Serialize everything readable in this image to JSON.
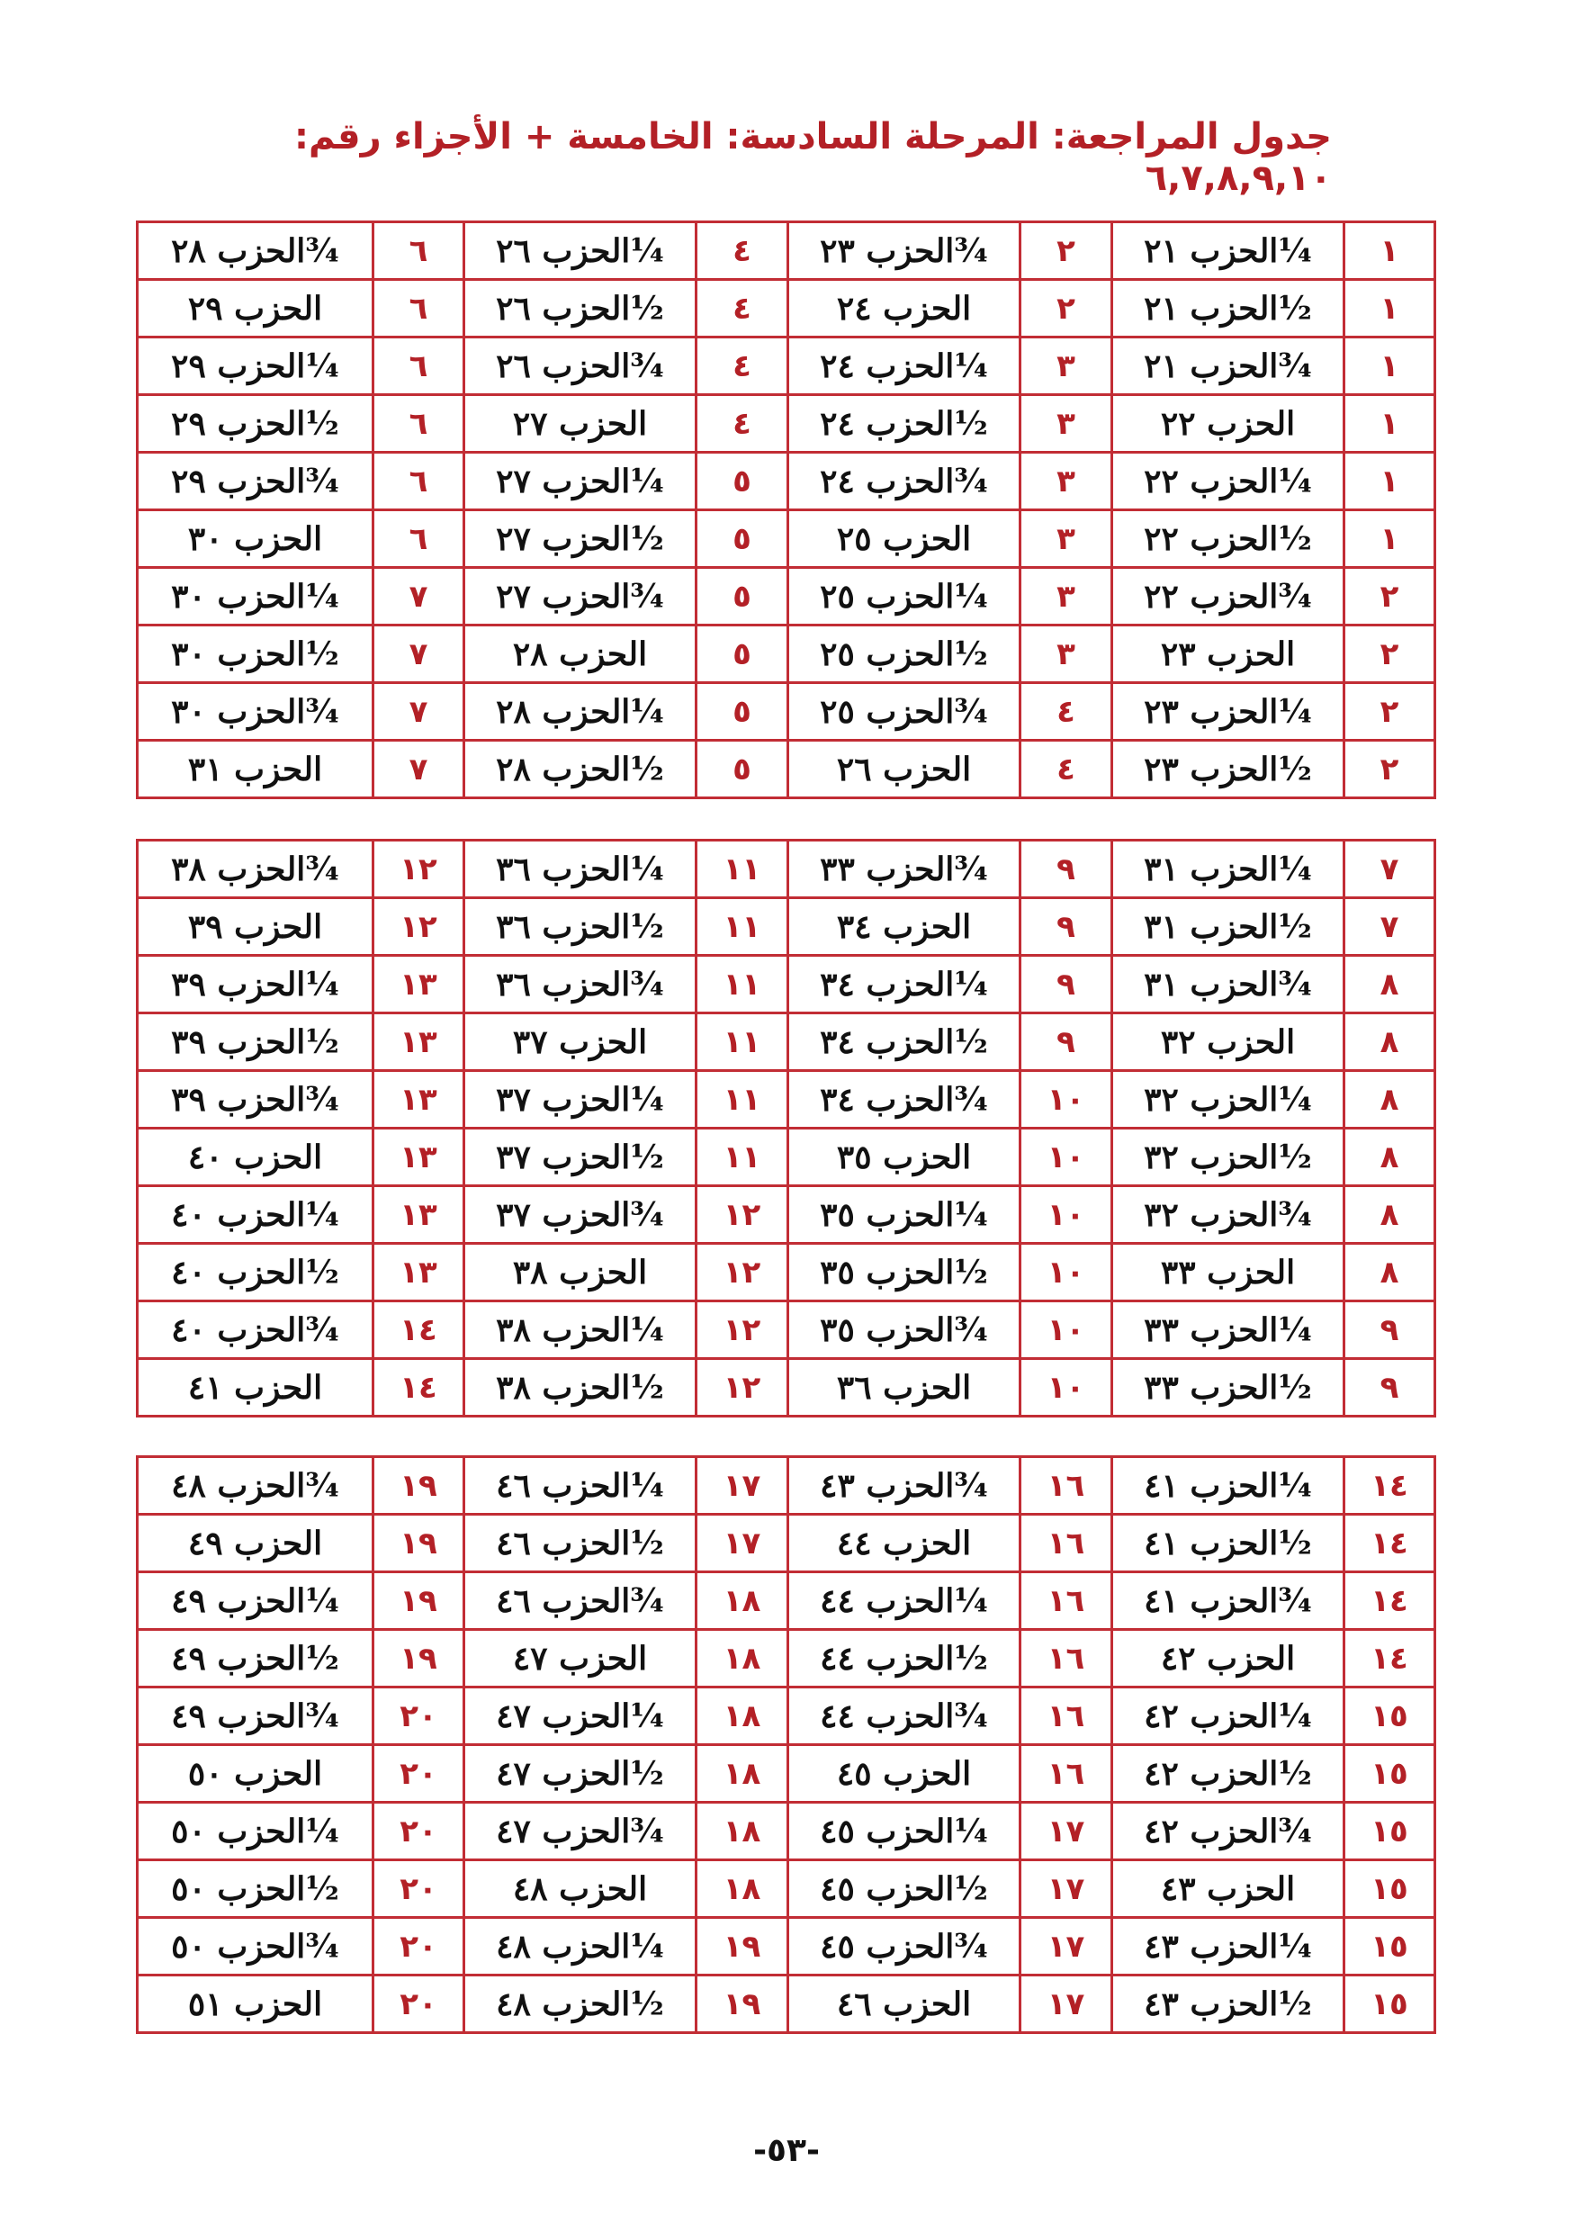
{
  "title": "جدول المراجعة: المرحلة السادسة: الخامسة + الأجزاء رقم: ٦,٧,٨,٩,١٠",
  "tables": [
    {
      "rows": [
        [
          "١",
          "¼الحزب ٢١",
          "٢",
          "¾الحزب ٢٣",
          "٤",
          "¼الحزب ٢٦",
          "٦",
          "¾الحزب ٢٨"
        ],
        [
          "١",
          "½الحزب ٢١",
          "٢",
          "الحزب ٢٤",
          "٤",
          "½الحزب ٢٦",
          "٦",
          "الحزب ٢٩"
        ],
        [
          "١",
          "¾الحزب ٢١",
          "٣",
          "¼الحزب ٢٤",
          "٤",
          "¾الحزب ٢٦",
          "٦",
          "¼الحزب ٢٩"
        ],
        [
          "١",
          "الحزب ٢٢",
          "٣",
          "½الحزب ٢٤",
          "٤",
          "الحزب ٢٧",
          "٦",
          "½الحزب ٢٩"
        ],
        [
          "١",
          "¼الحزب ٢٢",
          "٣",
          "¾الحزب ٢٤",
          "٥",
          "¼الحزب ٢٧",
          "٦",
          "¾الحزب ٢٩"
        ],
        [
          "١",
          "½الحزب ٢٢",
          "٣",
          "الحزب ٢٥",
          "٥",
          "½الحزب ٢٧",
          "٦",
          "الحزب ٣٠"
        ],
        [
          "٢",
          "¾الحزب ٢٢",
          "٣",
          "¼الحزب ٢٥",
          "٥",
          "¾الحزب ٢٧",
          "٧",
          "¼الحزب ٣٠"
        ],
        [
          "٢",
          "الحزب ٢٣",
          "٣",
          "½الحزب ٢٥",
          "٥",
          "الحزب ٢٨",
          "٧",
          "½الحزب ٣٠"
        ],
        [
          "٢",
          "¼الحزب ٢٣",
          "٤",
          "¾الحزب ٢٥",
          "٥",
          "¼الحزب ٢٨",
          "٧",
          "¾الحزب ٣٠"
        ],
        [
          "٢",
          "½الحزب ٢٣",
          "٤",
          "الحزب ٢٦",
          "٥",
          "½الحزب ٢٨",
          "٧",
          "الحزب ٣١"
        ]
      ]
    },
    {
      "rows": [
        [
          "٧",
          "¼الحزب ٣١",
          "٩",
          "¾الحزب ٣٣",
          "١١",
          "¼الحزب ٣٦",
          "١٢",
          "¾الحزب ٣٨"
        ],
        [
          "٧",
          "½الحزب ٣١",
          "٩",
          "الحزب ٣٤",
          "١١",
          "½الحزب ٣٦",
          "١٢",
          "الحزب ٣٩"
        ],
        [
          "٨",
          "¾الحزب ٣١",
          "٩",
          "¼الحزب ٣٤",
          "١١",
          "¾الحزب ٣٦",
          "١٣",
          "¼الحزب ٣٩"
        ],
        [
          "٨",
          "الحزب ٣٢",
          "٩",
          "½الحزب ٣٤",
          "١١",
          "الحزب ٣٧",
          "١٣",
          "½الحزب ٣٩"
        ],
        [
          "٨",
          "¼الحزب ٣٢",
          "١٠",
          "¾الحزب ٣٤",
          "١١",
          "¼الحزب ٣٧",
          "١٣",
          "¾الحزب ٣٩"
        ],
        [
          "٨",
          "½الحزب ٣٢",
          "١٠",
          "الحزب ٣٥",
          "١١",
          "½الحزب ٣٧",
          "١٣",
          "الحزب ٤٠"
        ],
        [
          "٨",
          "¾الحزب ٣٢",
          "١٠",
          "¼الحزب ٣٥",
          "١٢",
          "¾الحزب ٣٧",
          "١٣",
          "¼الحزب ٤٠"
        ],
        [
          "٨",
          "الحزب ٣٣",
          "١٠",
          "½الحزب ٣٥",
          "١٢",
          "الحزب ٣٨",
          "١٣",
          "½الحزب ٤٠"
        ],
        [
          "٩",
          "¼الحزب ٣٣",
          "١٠",
          "¾الحزب ٣٥",
          "١٢",
          "¼الحزب ٣٨",
          "١٤",
          "¾الحزب ٤٠"
        ],
        [
          "٩",
          "½الحزب ٣٣",
          "١٠",
          "الحزب ٣٦",
          "١٢",
          "½الحزب ٣٨",
          "١٤",
          "الحزب ٤١"
        ]
      ]
    },
    {
      "rows": [
        [
          "١٤",
          "¼الحزب ٤١",
          "١٦",
          "¾الحزب ٤٣",
          "١٧",
          "¼الحزب ٤٦",
          "١٩",
          "¾الحزب ٤٨"
        ],
        [
          "١٤",
          "½الحزب ٤١",
          "١٦",
          "الحزب ٤٤",
          "١٧",
          "½الحزب ٤٦",
          "١٩",
          "الحزب ٤٩"
        ],
        [
          "١٤",
          "¾الحزب ٤١",
          "١٦",
          "¼الحزب ٤٤",
          "١٨",
          "¾الحزب ٤٦",
          "١٩",
          "¼الحزب ٤٩"
        ],
        [
          "١٤",
          "الحزب ٤٢",
          "١٦",
          "½الحزب ٤٤",
          "١٨",
          "الحزب ٤٧",
          "١٩",
          "½الحزب ٤٩"
        ],
        [
          "١٥",
          "¼الحزب ٤٢",
          "١٦",
          "¾الحزب ٤٤",
          "١٨",
          "¼الحزب ٤٧",
          "٢٠",
          "¾الحزب ٤٩"
        ],
        [
          "١٥",
          "½الحزب ٤٢",
          "١٦",
          "الحزب ٤٥",
          "١٨",
          "½الحزب ٤٧",
          "٢٠",
          "الحزب ٥٠"
        ],
        [
          "١٥",
          "¾الحزب ٤٢",
          "١٧",
          "¼الحزب ٤٥",
          "١٨",
          "¾الحزب ٤٧",
          "٢٠",
          "¼الحزب ٥٠"
        ],
        [
          "١٥",
          "الحزب ٤٣",
          "١٧",
          "½الحزب ٤٥",
          "١٨",
          "الحزب ٤٨",
          "٢٠",
          "½الحزب ٥٠"
        ],
        [
          "١٥",
          "¼الحزب ٤٣",
          "١٧",
          "¾الحزب ٤٥",
          "١٩",
          "¼الحزب ٤٨",
          "٢٠",
          "¾الحزب ٥٠"
        ],
        [
          "١٥",
          "½الحزب ٤٣",
          "١٧",
          "الحزب ٤٦",
          "١٩",
          "½الحزب ٤٨",
          "٢٠",
          "الحزب ٥١"
        ]
      ]
    }
  ],
  "page_number": "-٥٣-"
}
